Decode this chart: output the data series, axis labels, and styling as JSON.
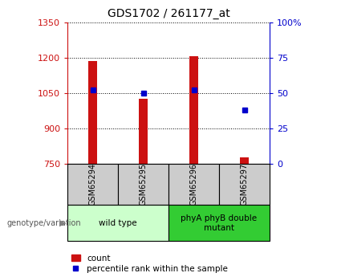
{
  "title": "GDS1702 / 261177_at",
  "samples": [
    "GSM65294",
    "GSM65295",
    "GSM65296",
    "GSM65297"
  ],
  "count_values": [
    1185,
    1025,
    1207,
    775
  ],
  "percentile_values": [
    52,
    50,
    52,
    38
  ],
  "ylim_left": [
    750,
    1350
  ],
  "ylim_right": [
    0,
    100
  ],
  "yticks_left": [
    750,
    900,
    1050,
    1200,
    1350
  ],
  "yticks_right": [
    0,
    25,
    50,
    75,
    100
  ],
  "ytick_labels_right": [
    "0",
    "25",
    "50",
    "75",
    "100%"
  ],
  "bar_color": "#cc1111",
  "dot_color": "#0000cc",
  "bar_width": 0.18,
  "groups": [
    {
      "label": "wild type",
      "indices": [
        0,
        1
      ],
      "color": "#ccffcc"
    },
    {
      "label": "phyA phyB double\nmutant",
      "indices": [
        2,
        3
      ],
      "color": "#33cc33"
    }
  ],
  "group_label": "genotype/variation",
  "legend_count_label": "count",
  "legend_percentile_label": "percentile rank within the sample",
  "axis_color_left": "#cc1111",
  "axis_color_right": "#0000cc",
  "sample_box_color": "#cccccc"
}
